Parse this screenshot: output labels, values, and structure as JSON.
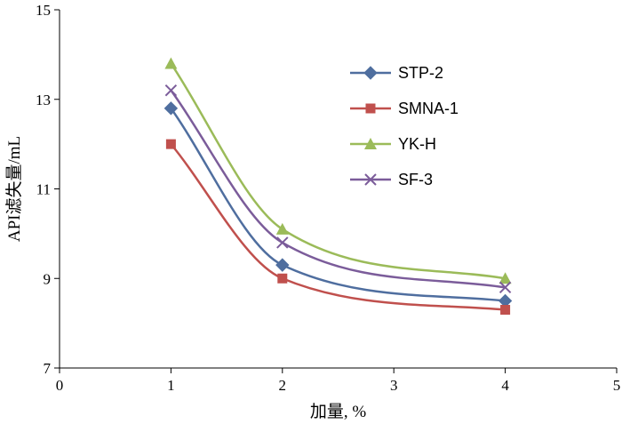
{
  "chart_data": {
    "type": "line",
    "title": "",
    "xlabel": "加量, %",
    "ylabel": "API滤失量/mL",
    "xlim": [
      0,
      5
    ],
    "ylim": [
      7,
      15
    ],
    "x_ticks": [
      0,
      1,
      2,
      3,
      4,
      5
    ],
    "y_ticks": [
      7,
      9,
      11,
      13,
      15
    ],
    "grid": false,
    "legend_position": "top-right",
    "smooth": true,
    "series": [
      {
        "name": "STP-2",
        "marker": "diamond",
        "color": "#4F6E9F",
        "x": [
          1,
          2,
          4
        ],
        "y": [
          12.8,
          9.3,
          8.5
        ]
      },
      {
        "name": "SMNA-1",
        "marker": "square",
        "color": "#C0504D",
        "x": [
          1,
          2,
          4
        ],
        "y": [
          12.0,
          9.0,
          8.3
        ]
      },
      {
        "name": "YK-H",
        "marker": "triangle",
        "color": "#9BBB59",
        "x": [
          1,
          2,
          4
        ],
        "y": [
          13.8,
          10.1,
          9.0
        ]
      },
      {
        "name": "SF-3",
        "marker": "x",
        "color": "#7B5C9A",
        "x": [
          1,
          2,
          4
        ],
        "y": [
          13.2,
          9.8,
          8.8
        ]
      }
    ]
  }
}
